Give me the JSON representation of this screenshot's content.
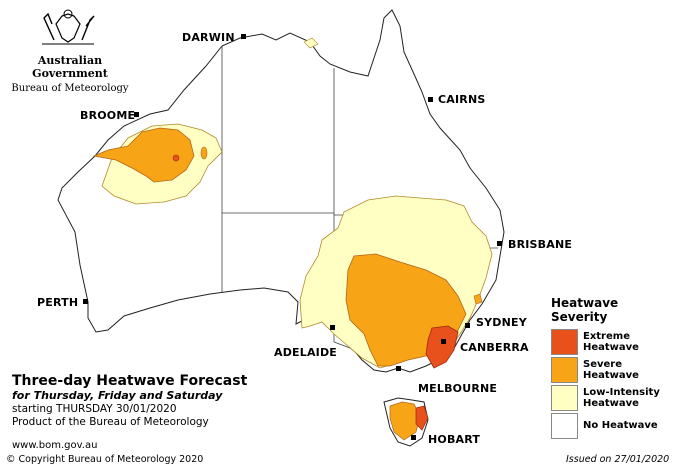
{
  "header": {
    "gov_name": "Australian Government",
    "agency": "Bureau of Meteorology"
  },
  "cities": {
    "darwin": "DARWIN",
    "cairns": "CAIRNS",
    "broome": "BROOME",
    "brisbane": "BRISBANE",
    "perth": "PERTH",
    "sydney": "SYDNEY",
    "adelaide": "ADELAIDE",
    "canberra": "CANBERRA",
    "melbourne": "MELBOURNE",
    "hobart": "HOBART"
  },
  "forecast": {
    "title": "Three-day Heatwave Forecast",
    "days": "for Thursday, Friday and Saturday",
    "start": "starting THURSDAY 30/01/2020",
    "product": "Product of the Bureau of Meteorology",
    "url": "www.bom.gov.au"
  },
  "legend": {
    "title": "Heatwave Severity",
    "items": [
      {
        "label": "Extreme Heatwave",
        "color": "#e8501c"
      },
      {
        "label": "Severe Heatwave",
        "color": "#f7a416"
      },
      {
        "label": "Low-Intensity Heatwave",
        "color": "#ffffc4"
      },
      {
        "label": "No Heatwave",
        "color": "#ffffff"
      }
    ]
  },
  "footer": {
    "copyright": "© Copyright Bureau of Meteorology 2020",
    "issued": "Issued on 27/01/2020"
  }
}
